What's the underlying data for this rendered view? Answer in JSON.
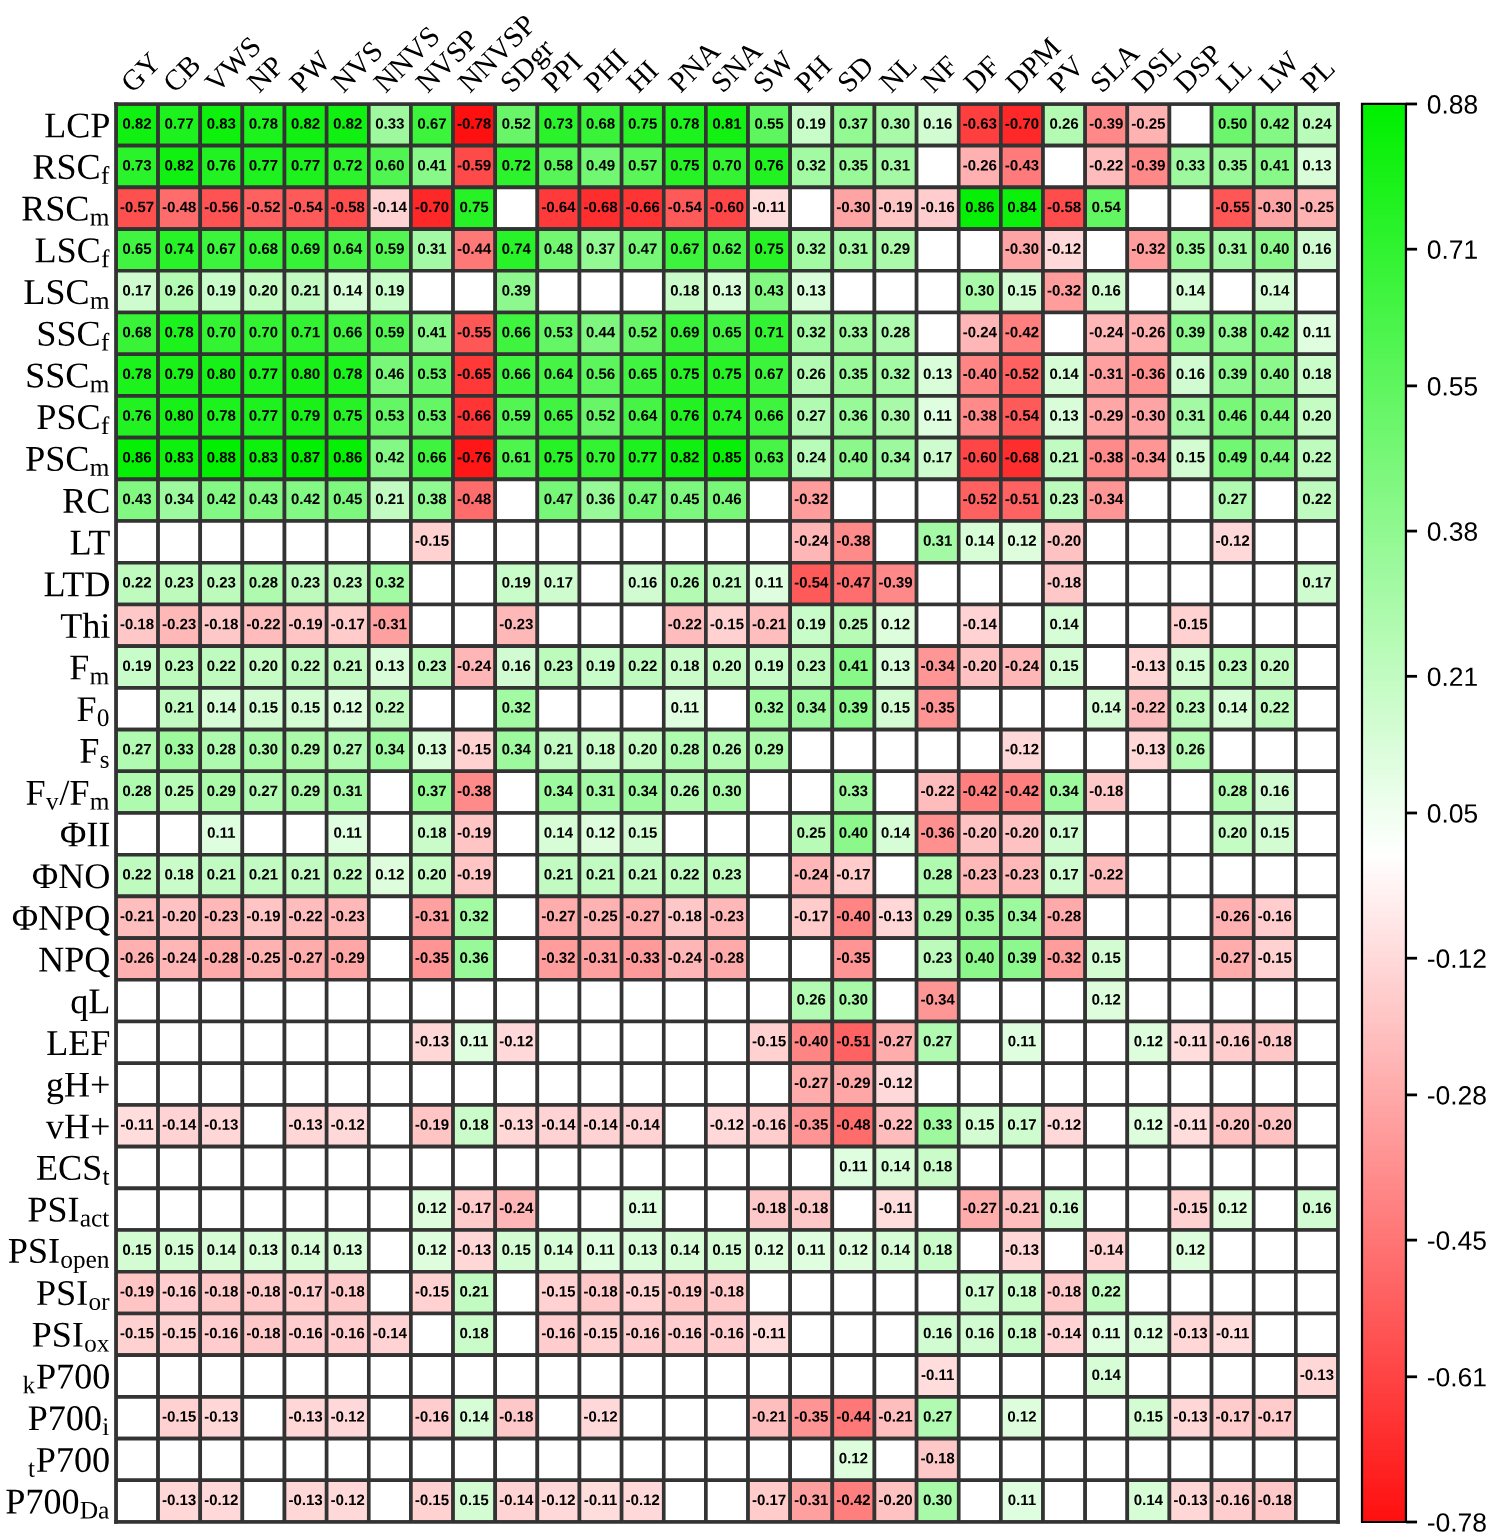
{
  "chart_data": {
    "type": "heatmap",
    "categories": [
      "GY",
      "CB",
      "VWS",
      "NP",
      "PW",
      "NVS",
      "NNVS",
      "NVSP",
      "NNVSP",
      "SDgr",
      "PPI",
      "PHI",
      "HI",
      "PNA",
      "SNA",
      "SW",
      "PH",
      "SD",
      "NL",
      "NF",
      "DF",
      "DPM",
      "PV",
      "SLA",
      "DSL",
      "DSP",
      "LL",
      "LW",
      "PL"
    ],
    "y_categories": [
      "LCP",
      "RSC$_{f}$",
      "RSC$_{m}$",
      "LSC$_{f}$",
      "LSC$_{m}$",
      "SSC$_{f}$",
      "SSC$_{m}$",
      "PSC$_{f}$",
      "PSC$_{m}$",
      "RC",
      "LT",
      "LTD",
      "Thi",
      "F$_{m}$",
      "F$_{0}$",
      "F$_{s}$",
      "F$_{v}$/F$_{m}$",
      "ΦII",
      "ΦNO",
      "ΦNPQ",
      "NPQ",
      "qL",
      "LEF",
      "gH+",
      "vH+",
      "ECS$_{t}$",
      "PSI$_{act}$",
      "PSI$_{open}$",
      "PSI$_{or}$",
      "PSI$_{ox}$",
      "$_{k}$P700",
      "P700$_{i}$",
      "$_{t}$P700",
      "P700$_{Da}$"
    ],
    "cells": [
      [
        0.82,
        0.77,
        0.83,
        0.78,
        0.82,
        0.82,
        0.33,
        0.67,
        -0.78,
        0.52,
        0.73,
        0.68,
        0.75,
        0.78,
        0.81,
        0.55,
        0.19,
        0.37,
        0.3,
        0.16,
        -0.63,
        -0.7,
        0.26,
        -0.39,
        -0.25,
        null,
        0.5,
        0.42,
        0.24
      ],
      [
        0.73,
        0.82,
        0.76,
        0.77,
        0.77,
        0.72,
        0.6,
        0.41,
        -0.59,
        0.72,
        0.58,
        0.49,
        0.57,
        0.75,
        0.7,
        0.76,
        0.32,
        0.35,
        0.31,
        null,
        -0.26,
        -0.43,
        null,
        -0.22,
        -0.39,
        0.33,
        0.35,
        0.41,
        0.13
      ],
      [
        -0.57,
        -0.48,
        -0.56,
        -0.52,
        -0.54,
        -0.58,
        -0.14,
        -0.7,
        0.75,
        null,
        -0.64,
        -0.68,
        -0.66,
        -0.54,
        -0.6,
        -0.11,
        null,
        -0.3,
        -0.19,
        -0.16,
        0.86,
        0.84,
        -0.58,
        0.54,
        null,
        null,
        -0.55,
        -0.3,
        -0.25
      ],
      [
        0.65,
        0.74,
        0.67,
        0.68,
        0.69,
        0.64,
        0.59,
        0.31,
        -0.44,
        0.74,
        0.48,
        0.37,
        0.47,
        0.67,
        0.62,
        0.75,
        0.32,
        0.31,
        0.29,
        null,
        null,
        -0.3,
        -0.12,
        null,
        -0.32,
        0.35,
        0.31,
        0.4,
        0.16
      ],
      [
        0.17,
        0.26,
        0.19,
        0.2,
        0.21,
        0.14,
        0.19,
        null,
        null,
        0.39,
        null,
        null,
        null,
        0.18,
        0.13,
        0.43,
        0.13,
        null,
        null,
        null,
        0.3,
        0.15,
        -0.32,
        0.16,
        null,
        0.14,
        null,
        0.14,
        null
      ],
      [
        0.68,
        0.78,
        0.7,
        0.7,
        0.71,
        0.66,
        0.59,
        0.41,
        -0.55,
        0.66,
        0.53,
        0.44,
        0.52,
        0.69,
        0.65,
        0.71,
        0.32,
        0.33,
        0.28,
        null,
        -0.24,
        -0.42,
        null,
        -0.24,
        -0.26,
        0.39,
        0.38,
        0.42,
        0.11
      ],
      [
        0.78,
        0.79,
        0.8,
        0.77,
        0.8,
        0.78,
        0.46,
        0.53,
        -0.65,
        0.66,
        0.64,
        0.56,
        0.65,
        0.75,
        0.75,
        0.67,
        0.26,
        0.35,
        0.32,
        0.13,
        -0.4,
        -0.52,
        0.14,
        -0.31,
        -0.36,
        0.16,
        0.39,
        0.4,
        0.18
      ],
      [
        0.76,
        0.8,
        0.78,
        0.77,
        0.79,
        0.75,
        0.53,
        0.53,
        -0.66,
        0.59,
        0.65,
        0.52,
        0.64,
        0.76,
        0.74,
        0.66,
        0.27,
        0.36,
        0.3,
        0.11,
        -0.38,
        -0.54,
        0.13,
        -0.29,
        -0.3,
        0.31,
        0.46,
        0.44,
        0.2
      ],
      [
        0.86,
        0.83,
        0.88,
        0.83,
        0.87,
        0.86,
        0.42,
        0.66,
        -0.76,
        0.61,
        0.75,
        0.7,
        0.77,
        0.82,
        0.85,
        0.63,
        0.24,
        0.4,
        0.34,
        0.17,
        -0.6,
        -0.68,
        0.21,
        -0.38,
        -0.34,
        0.15,
        0.49,
        0.44,
        0.22
      ],
      [
        0.43,
        0.34,
        0.42,
        0.43,
        0.42,
        0.45,
        0.21,
        0.38,
        -0.48,
        null,
        0.47,
        0.36,
        0.47,
        0.45,
        0.46,
        null,
        -0.32,
        null,
        null,
        null,
        -0.52,
        -0.51,
        0.23,
        -0.34,
        null,
        null,
        0.27,
        null,
        0.22
      ],
      [
        null,
        null,
        null,
        null,
        null,
        null,
        null,
        -0.15,
        null,
        null,
        null,
        null,
        null,
        null,
        null,
        null,
        -0.24,
        -0.38,
        null,
        0.31,
        0.14,
        0.12,
        -0.2,
        null,
        null,
        null,
        -0.12,
        null,
        null
      ],
      [
        0.22,
        0.23,
        0.23,
        0.28,
        0.23,
        0.23,
        0.32,
        null,
        null,
        0.19,
        0.17,
        null,
        0.16,
        0.26,
        0.21,
        0.11,
        -0.54,
        -0.47,
        -0.39,
        null,
        null,
        null,
        -0.18,
        null,
        null,
        null,
        null,
        null,
        0.17
      ],
      [
        -0.18,
        -0.23,
        -0.18,
        -0.22,
        -0.19,
        -0.17,
        -0.31,
        null,
        null,
        -0.23,
        null,
        null,
        null,
        -0.22,
        -0.15,
        -0.21,
        0.19,
        0.25,
        0.12,
        null,
        -0.14,
        null,
        0.14,
        null,
        null,
        -0.15,
        null,
        null,
        null
      ],
      [
        0.19,
        0.23,
        0.22,
        0.2,
        0.22,
        0.21,
        0.13,
        0.23,
        -0.24,
        0.16,
        0.23,
        0.19,
        0.22,
        0.18,
        0.2,
        0.19,
        0.23,
        0.41,
        0.13,
        -0.34,
        -0.2,
        -0.24,
        0.15,
        null,
        -0.13,
        0.15,
        0.23,
        0.2,
        null
      ],
      [
        null,
        0.21,
        0.14,
        0.15,
        0.15,
        0.12,
        0.22,
        null,
        null,
        0.32,
        null,
        null,
        null,
        0.11,
        null,
        0.32,
        0.34,
        0.39,
        0.15,
        -0.35,
        null,
        null,
        null,
        0.14,
        -0.22,
        0.23,
        0.14,
        0.22,
        null
      ],
      [
        0.27,
        0.33,
        0.28,
        0.3,
        0.29,
        0.27,
        0.34,
        0.13,
        -0.15,
        0.34,
        0.21,
        0.18,
        0.2,
        0.28,
        0.26,
        0.29,
        null,
        null,
        null,
        null,
        null,
        -0.12,
        null,
        null,
        -0.13,
        0.26,
        null,
        null,
        null
      ],
      [
        0.28,
        0.25,
        0.29,
        0.27,
        0.29,
        0.31,
        null,
        0.37,
        -0.38,
        null,
        0.34,
        0.31,
        0.34,
        0.26,
        0.3,
        null,
        null,
        0.33,
        null,
        -0.22,
        -0.42,
        -0.42,
        0.34,
        -0.18,
        null,
        null,
        0.28,
        0.16,
        null
      ],
      [
        null,
        null,
        0.11,
        null,
        null,
        0.11,
        null,
        0.18,
        -0.19,
        null,
        0.14,
        0.12,
        0.15,
        null,
        null,
        null,
        0.25,
        0.4,
        0.14,
        -0.36,
        -0.2,
        -0.2,
        0.17,
        null,
        null,
        null,
        0.2,
        0.15,
        null
      ],
      [
        0.22,
        0.18,
        0.21,
        0.21,
        0.21,
        0.22,
        0.12,
        0.2,
        -0.19,
        null,
        0.21,
        0.21,
        0.21,
        0.22,
        0.23,
        null,
        -0.24,
        -0.17,
        null,
        0.28,
        -0.23,
        -0.23,
        0.17,
        -0.22,
        null,
        null,
        null,
        null,
        null
      ],
      [
        -0.21,
        -0.2,
        -0.23,
        -0.19,
        -0.22,
        -0.23,
        null,
        -0.31,
        0.32,
        null,
        -0.27,
        -0.25,
        -0.27,
        -0.18,
        -0.23,
        null,
        -0.17,
        -0.4,
        -0.13,
        0.29,
        0.35,
        0.34,
        -0.28,
        null,
        null,
        null,
        -0.26,
        -0.16,
        null
      ],
      [
        -0.26,
        -0.24,
        -0.28,
        -0.25,
        -0.27,
        -0.29,
        null,
        -0.35,
        0.36,
        null,
        -0.32,
        -0.31,
        -0.33,
        -0.24,
        -0.28,
        null,
        null,
        -0.35,
        null,
        0.23,
        0.4,
        0.39,
        -0.32,
        0.15,
        null,
        null,
        -0.27,
        -0.15,
        null
      ],
      [
        null,
        null,
        null,
        null,
        null,
        null,
        null,
        null,
        null,
        null,
        null,
        null,
        null,
        null,
        null,
        null,
        0.26,
        0.3,
        null,
        -0.34,
        null,
        null,
        null,
        0.12,
        null,
        null,
        null,
        null,
        null
      ],
      [
        null,
        null,
        null,
        null,
        null,
        null,
        null,
        -0.13,
        0.11,
        -0.12,
        null,
        null,
        null,
        null,
        null,
        -0.15,
        -0.4,
        -0.51,
        -0.27,
        0.27,
        null,
        0.11,
        null,
        null,
        0.12,
        -0.11,
        -0.16,
        -0.18,
        null
      ],
      [
        null,
        null,
        null,
        null,
        null,
        null,
        null,
        null,
        null,
        null,
        null,
        null,
        null,
        null,
        null,
        null,
        -0.27,
        -0.29,
        -0.12,
        null,
        null,
        null,
        null,
        null,
        null,
        null,
        null,
        null,
        null
      ],
      [
        -0.11,
        -0.14,
        -0.13,
        null,
        -0.13,
        -0.12,
        null,
        -0.19,
        0.18,
        -0.13,
        -0.14,
        -0.14,
        -0.14,
        null,
        -0.12,
        -0.16,
        -0.35,
        -0.48,
        -0.22,
        0.33,
        0.15,
        0.17,
        -0.12,
        null,
        0.12,
        -0.11,
        -0.2,
        -0.2,
        null
      ],
      [
        null,
        null,
        null,
        null,
        null,
        null,
        null,
        null,
        null,
        null,
        null,
        null,
        null,
        null,
        null,
        null,
        null,
        0.11,
        0.14,
        0.18,
        null,
        null,
        null,
        null,
        null,
        null,
        null,
        null,
        null
      ],
      [
        null,
        null,
        null,
        null,
        null,
        null,
        null,
        0.12,
        -0.17,
        -0.24,
        null,
        null,
        0.11,
        null,
        null,
        -0.18,
        -0.18,
        null,
        -0.11,
        null,
        -0.27,
        -0.21,
        0.16,
        null,
        null,
        -0.15,
        0.12,
        null,
        0.16
      ],
      [
        0.15,
        0.15,
        0.14,
        0.13,
        0.14,
        0.13,
        null,
        0.12,
        -0.13,
        0.15,
        0.14,
        0.11,
        0.13,
        0.14,
        0.15,
        0.12,
        0.11,
        0.12,
        0.14,
        0.18,
        null,
        -0.13,
        null,
        -0.14,
        null,
        0.12,
        null,
        null,
        null
      ],
      [
        -0.19,
        -0.16,
        -0.18,
        -0.18,
        -0.17,
        -0.18,
        null,
        -0.15,
        0.21,
        null,
        -0.15,
        -0.18,
        -0.15,
        -0.19,
        -0.18,
        null,
        null,
        null,
        null,
        null,
        0.17,
        0.18,
        -0.18,
        0.22,
        null,
        null,
        null,
        null,
        null
      ],
      [
        -0.15,
        -0.15,
        -0.16,
        -0.18,
        -0.16,
        -0.16,
        -0.14,
        null,
        0.18,
        null,
        -0.16,
        -0.15,
        -0.16,
        -0.16,
        -0.16,
        -0.11,
        null,
        null,
        null,
        0.16,
        0.16,
        0.18,
        -0.14,
        0.11,
        0.12,
        -0.13,
        -0.11,
        null,
        null
      ],
      [
        null,
        null,
        null,
        null,
        null,
        null,
        null,
        null,
        null,
        null,
        null,
        null,
        null,
        null,
        null,
        null,
        null,
        null,
        null,
        -0.11,
        null,
        null,
        null,
        0.14,
        null,
        null,
        null,
        null,
        -0.13
      ],
      [
        null,
        -0.15,
        -0.13,
        null,
        -0.13,
        -0.12,
        null,
        -0.16,
        0.14,
        -0.18,
        null,
        -0.12,
        null,
        null,
        null,
        -0.21,
        -0.35,
        -0.44,
        -0.21,
        0.27,
        null,
        0.12,
        null,
        null,
        0.15,
        -0.13,
        -0.17,
        -0.17,
        null
      ],
      [
        null,
        null,
        null,
        null,
        null,
        null,
        null,
        null,
        null,
        null,
        null,
        null,
        null,
        null,
        null,
        null,
        null,
        0.12,
        null,
        -0.18,
        null,
        null,
        null,
        null,
        null,
        null,
        null,
        null,
        null
      ],
      [
        null,
        -0.13,
        -0.12,
        null,
        -0.13,
        -0.12,
        null,
        -0.15,
        0.15,
        -0.14,
        -0.12,
        -0.11,
        -0.12,
        null,
        null,
        -0.17,
        -0.31,
        -0.42,
        -0.2,
        0.3,
        null,
        0.11,
        null,
        null,
        0.14,
        -0.13,
        -0.16,
        -0.18,
        null
      ]
    ],
    "cell_labels": [
      [
        "0.82",
        "0.77",
        "0.83",
        "0.78",
        "0.82",
        "0.82",
        "0.33",
        "0.67",
        "-0.78",
        "0.52",
        "0.73",
        "0.68",
        "0.75",
        "0.78",
        "0.81",
        "0.55",
        "0.19",
        "0.37",
        "0.30",
        "0.16",
        "-0.63",
        "-0.70",
        "0.26",
        "-0.39",
        "-0.25",
        null,
        "0.50",
        "0.42",
        "0.24"
      ],
      [
        "0.73",
        "0.82",
        "0.76",
        "0.77",
        "0.77",
        "0.72",
        "0.60",
        "0.41",
        "-0.59",
        "0.72",
        "0.58",
        "0.49",
        "0.57",
        "0.75",
        "0.70",
        "0.76",
        "0.32",
        "0.35",
        "0.31",
        null,
        "-0.26",
        "-0.43",
        null,
        "-0.22",
        "-0.39",
        "0.33",
        "0.35",
        "0.41",
        "0.13"
      ],
      [
        "-0.57",
        "-0.48",
        "-0.56",
        "-0.52",
        "-0.54",
        "-0.58",
        "-0.14",
        "-0.70",
        "0.75",
        null,
        "-0.64",
        "-0.68",
        "-0.66",
        "-0.54",
        "-0.60",
        "-0.11",
        null,
        "-0.30",
        "-0.19",
        "-0.16",
        "0.86",
        "0.84",
        "-0.58",
        "0.54",
        null,
        null,
        "-0.55",
        "-0.30",
        "-0.25"
      ],
      [
        "0.65",
        "0.74",
        "0.67",
        "0.68",
        "0.69",
        "0.64",
        "0.59",
        "0.31",
        "-0.44",
        "0.74",
        "0.48",
        "0.37",
        "0.47",
        "0.67",
        "0.62",
        "0.75",
        "0.32",
        "0.31",
        "0.29",
        null,
        null,
        "-0.30",
        "-0.12",
        null,
        "-0.32",
        "0.35",
        "0.31",
        "0.40",
        "0.16"
      ],
      [
        "0.17",
        "0.26",
        "0.19",
        "0.20",
        "0.21",
        "0.14",
        "0.19",
        null,
        null,
        "0.39",
        null,
        null,
        null,
        "0.18",
        "0.13",
        "0.43",
        "0.13",
        null,
        null,
        null,
        "0.30",
        "0.15",
        "-0.32",
        "0.16",
        null,
        "0.14",
        null,
        "0.14",
        null
      ],
      [
        "0.68",
        "0.78",
        "0.70",
        "0.70",
        "0.71",
        "0.66",
        "0.59",
        "0.41",
        "-0.55",
        "0.66",
        "0.53",
        "0.44",
        "0.52",
        "0.69",
        "0.65",
        "0.71",
        "0.32",
        "0.33",
        "0.28",
        null,
        "-0.24",
        "-0.42",
        null,
        "-0.24",
        "-0.26",
        "0.39",
        "0.38",
        "0.42",
        "0.11"
      ],
      [
        "0.78",
        "0.79",
        "0.80",
        "0.77",
        "0.80",
        "0.78",
        "0.46",
        "0.53",
        "-0.65",
        "0.66",
        "0.64",
        "0.56",
        "0.65",
        "0.75",
        "0.75",
        "0.67",
        "0.26",
        "0.35",
        "0.32",
        "0.13",
        "-0.40",
        "-0.52",
        "0.14",
        "-0.31",
        "-0.36",
        "0.16",
        "0.39",
        "0.40",
        "0.18"
      ],
      [
        "0.76",
        "0.80",
        "0.78",
        "0.77",
        "0.79",
        "0.75",
        "0.53",
        "0.53",
        "-0.66",
        "0.59",
        "0.65",
        "0.52",
        "0.64",
        "0.76",
        "0.74",
        "0.66",
        "0.27",
        "0.36",
        "0.30",
        "0.11",
        "-0.38",
        "-0.54",
        "0.13",
        "-0.29",
        "-0.30",
        "0.31",
        "0.46",
        "0.44",
        "0.20"
      ],
      [
        "0.86",
        "0.83",
        "0.88",
        "0.83",
        "0.87",
        "0.86",
        "0.42",
        "0.66",
        "-0.76",
        "0.61",
        "0.75",
        "0.70",
        "0.77",
        "0.82",
        "0.85",
        "0.63",
        "0.24",
        "0.40",
        "0.34",
        "0.17",
        "-0.60",
        "-0.68",
        "0.21",
        "-0.38",
        "-0.34",
        "0.15",
        "0.49",
        "0.44",
        "0.22"
      ],
      [
        "0.43",
        "0.34",
        "0.42",
        "0.43",
        "0.42",
        "0.45",
        "0.21",
        "0.38",
        "-0.48",
        null,
        "0.47",
        "0.36",
        "0.47",
        "0.45",
        "0.46",
        null,
        "-0.32",
        null,
        null,
        null,
        "-0.52",
        "-0.51",
        "0.23",
        "-0.34",
        null,
        null,
        "0.27",
        null,
        "0.22"
      ],
      [
        null,
        null,
        null,
        null,
        null,
        null,
        null,
        "-0.15",
        null,
        null,
        null,
        null,
        null,
        null,
        null,
        null,
        "-0.24",
        "-0.38",
        null,
        "0.31",
        "0.14",
        "0.12",
        "-0.20",
        null,
        null,
        null,
        "-0.12",
        null,
        null
      ],
      [
        "0.22",
        "0.23",
        "0.23",
        "0.28",
        "0.23",
        "0.23",
        "0.32",
        null,
        null,
        "0.19",
        "0.17",
        null,
        "0.16",
        "0.26",
        "0.21",
        "0.11",
        "-0.54",
        "-0.47",
        "-0.39",
        null,
        null,
        null,
        "-0.18",
        null,
        null,
        null,
        null,
        null,
        "0.17"
      ],
      [
        "-0.18",
        "-0.23",
        "-0.18",
        "-0.22",
        "-0.19",
        "-0.17",
        "-0.31",
        null,
        null,
        "-0.23",
        null,
        null,
        null,
        "-0.22",
        "-0.15",
        "-0.21",
        "0.19",
        "0.25",
        "0.12",
        null,
        "-0.14",
        null,
        "0.14",
        null,
        null,
        "-0.15",
        null,
        null,
        null
      ],
      [
        "0.19",
        "0.23",
        "0.22",
        "0.20",
        "0.22",
        "0.21",
        "0.13",
        "0.23",
        "-0.24",
        "0.16",
        "0.23",
        "0.19",
        "0.22",
        "0.18",
        "0.20",
        "0.19",
        "0.23",
        "0.41",
        "0.13",
        "-0.34",
        "-0.20",
        "-0.24",
        "0.15",
        null,
        "-0.13",
        "0.15",
        "0.23",
        "0.20",
        null
      ],
      [
        null,
        "0.21",
        "0.14",
        "0.15",
        "0.15",
        "0.12",
        "0.22",
        null,
        null,
        "0.32",
        null,
        null,
        null,
        "0.11",
        null,
        "0.32",
        "0.34",
        "0.39",
        "0.15",
        "-0.35",
        null,
        null,
        null,
        "0.14",
        "-0.22",
        "0.23",
        "0.14",
        "0.22",
        null
      ],
      [
        "0.27",
        "0.33",
        "0.28",
        "0.30",
        "0.29",
        "0.27",
        "0.34",
        "0.13",
        "-0.15",
        "0.34",
        "0.21",
        "0.18",
        "0.20",
        "0.28",
        "0.26",
        "0.29",
        null,
        null,
        null,
        null,
        null,
        "-0.12",
        null,
        null,
        "-0.13",
        "0.26",
        null,
        null,
        null
      ],
      [
        "0.28",
        "0.25",
        "0.29",
        "0.27",
        "0.29",
        "0.31",
        null,
        "0.37",
        "-0.38",
        null,
        "0.34",
        "0.31",
        "0.34",
        "0.26",
        "0.30",
        null,
        null,
        "0.33",
        null,
        "-0.22",
        "-0.42",
        "-0.42",
        "0.34",
        "-0.18",
        null,
        null,
        "0.28",
        "0.16",
        null
      ],
      [
        null,
        null,
        "0.11",
        null,
        null,
        "0.11",
        null,
        "0.18",
        "-0.19",
        null,
        "0.14",
        "0.12",
        "0.15",
        null,
        null,
        null,
        "0.25",
        "0.40",
        "0.14",
        "-0.36",
        "-0.20",
        "-0.20",
        "0.17",
        null,
        null,
        null,
        "0.20",
        "0.15",
        null
      ],
      [
        "0.22",
        "0.18",
        "0.21",
        "0.21",
        "0.21",
        "0.22",
        "0.12",
        "0.20",
        "-0.19",
        null,
        "0.21",
        "0.21",
        "0.21",
        "0.22",
        "0.23",
        null,
        "-0.24",
        "-0.17",
        null,
        "0.28",
        "-0.23",
        "-0.23",
        "0.17",
        "-0.22",
        null,
        null,
        null,
        null,
        null
      ],
      [
        "-0.21",
        "-0.20",
        "-0.23",
        "-0.19",
        "-0.22",
        "-0.23",
        null,
        "-0.31",
        "0.32",
        null,
        "-0.27",
        "-0.25",
        "-0.27",
        "-0.18",
        "-0.23",
        null,
        "-0.17",
        "-0.40",
        "-0.13",
        "0.29",
        "0.35",
        "0.34",
        "-0.28",
        null,
        null,
        null,
        "-0.26",
        "-0.16",
        null
      ],
      [
        "-0.26",
        "-0.24",
        "-0.28",
        "-0.25",
        "-0.27",
        "-0.29",
        null,
        "-0.35",
        "0.36",
        null,
        "-0.32",
        "-0.31",
        "-0.33",
        "-0.24",
        "-0.28",
        null,
        null,
        "-0.35",
        null,
        "0.23",
        "0.40",
        "0.39",
        "-0.32",
        "0.15",
        null,
        null,
        "-0.27",
        "-0.15",
        null
      ],
      [
        null,
        null,
        null,
        null,
        null,
        null,
        null,
        null,
        null,
        null,
        null,
        null,
        null,
        null,
        null,
        null,
        "0.26",
        "0.30",
        null,
        "-0.34",
        null,
        null,
        null,
        "0.12",
        null,
        null,
        null,
        null,
        null
      ],
      [
        null,
        null,
        null,
        null,
        null,
        null,
        null,
        "-0.13",
        "0.11",
        "-0.12",
        null,
        null,
        null,
        null,
        null,
        "-0.15",
        "-0.40",
        "-0.51",
        "-0.27",
        "0.27",
        null,
        "0.11",
        null,
        null,
        "0.12",
        "-0.11",
        "-0.16",
        "-0.18",
        null
      ],
      [
        null,
        null,
        null,
        null,
        null,
        null,
        null,
        null,
        null,
        null,
        null,
        null,
        null,
        null,
        null,
        null,
        "-0.27",
        "-0.29",
        "-0.12",
        null,
        null,
        null,
        null,
        null,
        null,
        null,
        null,
        null,
        null
      ],
      [
        "-0.11",
        "-0.14",
        "-0.13",
        null,
        "-0.13",
        "-0.12",
        null,
        "-0.19",
        "0.18",
        "-0.13",
        "-0.14",
        "-0.14",
        "-0.14",
        null,
        "-0.12",
        "-0.16",
        "-0.35",
        "-0.48",
        "-0.22",
        "0.33",
        "0.15",
        "0.17",
        "-0.12",
        null,
        "0.12",
        "-0.11",
        "-0.20",
        "-0.20",
        null
      ],
      [
        null,
        null,
        null,
        null,
        null,
        null,
        null,
        null,
        null,
        null,
        null,
        null,
        null,
        null,
        null,
        null,
        null,
        "0.11",
        "0.14",
        "0.18",
        null,
        null,
        null,
        null,
        null,
        null,
        null,
        null,
        null
      ],
      [
        null,
        null,
        null,
        null,
        null,
        null,
        null,
        "0.12",
        "-0.17",
        "-0.24",
        null,
        null,
        "0.11",
        null,
        null,
        "-0.18",
        "-0.18",
        null,
        "-0.11",
        null,
        "-0.27",
        "-0.21",
        "0.16",
        null,
        null,
        "-0.15",
        "0.12",
        null,
        "0.16"
      ],
      [
        "0.15",
        "0.15",
        "0.14",
        "0.13",
        "0.14",
        "0.13",
        null,
        "0.12",
        "-0.13",
        "0.15",
        "0.14",
        "0.11",
        "0.13",
        "0.14",
        "0.15",
        "0.12",
        "0.11",
        "0.12",
        "0.14",
        "0.18",
        null,
        "-0.13",
        null,
        "-0.14",
        null,
        "0.12",
        null,
        null,
        null
      ],
      [
        "-0.19",
        "-0.16",
        "-0.18",
        "-0.18",
        "-0.17",
        "-0.18",
        null,
        "-0.15",
        "0.21",
        null,
        "-0.15",
        "-0.18",
        "-0.15",
        "-0.19",
        "-0.18",
        null,
        null,
        null,
        null,
        null,
        "0.17",
        "0.18",
        "-0.18",
        "0.22",
        null,
        null,
        null,
        null,
        null
      ],
      [
        "-0.15",
        "-0.15",
        "-0.16",
        "-0.18",
        "-0.16",
        "-0.16",
        "-0.14",
        null,
        "0.18",
        null,
        "-0.16",
        "-0.15",
        "-0.16",
        "-0.16",
        "-0.16",
        "-0.11",
        null,
        null,
        null,
        "0.16",
        "0.16",
        "0.18",
        "-0.14",
        "0.11",
        "0.12",
        "-0.13",
        "-0.11",
        null,
        null
      ],
      [
        null,
        null,
        null,
        null,
        null,
        null,
        null,
        null,
        null,
        null,
        null,
        null,
        null,
        null,
        null,
        null,
        null,
        null,
        null,
        "-0.11",
        null,
        null,
        null,
        "0.14",
        null,
        null,
        null,
        null,
        "-0.13"
      ],
      [
        null,
        "-0.15",
        "-0.13",
        null,
        "-0.13",
        "-0.12",
        null,
        "-0.16",
        "0.14",
        "-0.18",
        null,
        "-0.12",
        null,
        null,
        null,
        "-0.21",
        "-0.35",
        "-0.44",
        "-0.21",
        "0.27",
        null,
        "0.12",
        null,
        null,
        "0.15",
        "-0.13",
        "-0.17",
        "-0.17",
        null
      ],
      [
        null,
        null,
        null,
        null,
        null,
        null,
        null,
        null,
        null,
        null,
        null,
        null,
        null,
        null,
        null,
        null,
        null,
        "0.12",
        null,
        "-0.18",
        null,
        null,
        null,
        null,
        null,
        null,
        null,
        null,
        null
      ],
      [
        null,
        "-0.13",
        "-0.12",
        null,
        "-0.13",
        "-0.12",
        null,
        "-0.15",
        "0.15",
        "-0.14",
        "-0.12",
        "-0.11",
        "-0.12",
        null,
        null,
        "-0.17",
        "-0.31",
        "-0.42",
        "-0.20",
        "0.30",
        null,
        "0.11",
        null,
        null,
        "0.14",
        "-0.13",
        "-0.16",
        "-0.18",
        null
      ]
    ],
    "clim": [
      -0.78,
      0.88
    ],
    "cticks": [
      0.88,
      0.71,
      0.55,
      0.38,
      0.21,
      0.05,
      -0.12,
      -0.28,
      -0.45,
      -0.61,
      -0.78
    ],
    "data_labels": true
  }
}
